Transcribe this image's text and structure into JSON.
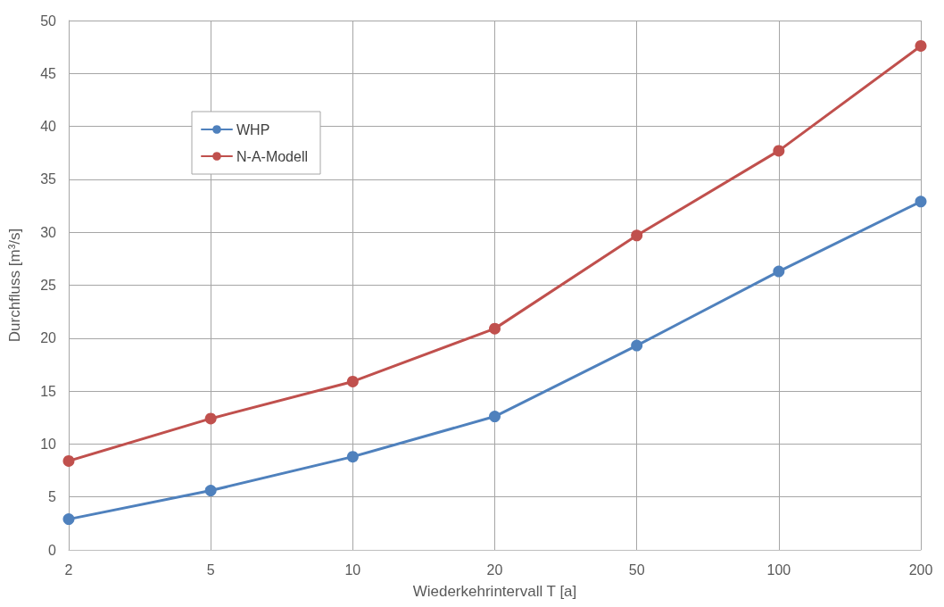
{
  "chart_data": {
    "type": "line",
    "xlabel": "Wiederkehrintervall T [a]",
    "ylabel": "Durchfluss [m³/s]",
    "categories": [
      "2",
      "5",
      "10",
      "20",
      "50",
      "100",
      "200"
    ],
    "series": [
      {
        "name": "WHP",
        "color": "#4f81bd",
        "values": [
          2.9,
          5.6,
          8.8,
          12.6,
          19.3,
          26.3,
          32.9
        ]
      },
      {
        "name": "N-A-Modell",
        "color": "#c0504d",
        "values": [
          8.4,
          12.4,
          15.9,
          20.9,
          29.7,
          37.7,
          47.6
        ]
      }
    ],
    "ylim": [
      0,
      50
    ],
    "yticks": [
      0,
      5,
      10,
      15,
      20,
      25,
      30,
      35,
      40,
      45,
      50
    ],
    "grid": true,
    "legend": "top left",
    "marker": "circle",
    "line_style": "solid"
  }
}
